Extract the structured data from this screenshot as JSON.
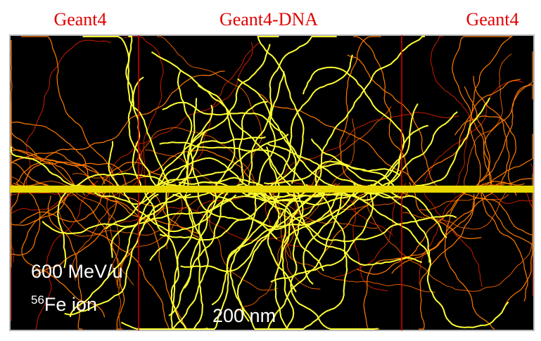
{
  "regions": {
    "left": "Geant4",
    "center": "Geant4-DNA",
    "right": "Geant4"
  },
  "annotations": {
    "energy": "600 MeV/u",
    "mass_number": "56",
    "ion": "Fe ion",
    "scale": "200  nm"
  }
}
